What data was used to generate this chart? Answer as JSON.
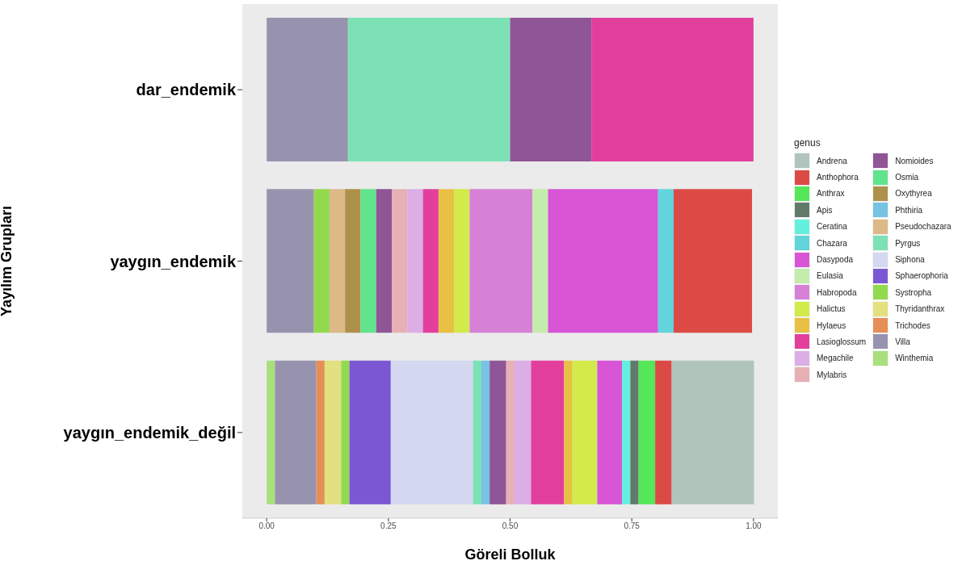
{
  "chart_data": {
    "type": "bar",
    "orientation": "horizontal",
    "stacked": true,
    "xlabel": "Göreli Bolluk",
    "ylabel": "Yayılım Grupları",
    "legend_title": "genus",
    "legend": "right",
    "categories": [
      "dar_endemik",
      "yaygın_endemik",
      "yaygın_endemik_değil"
    ],
    "xlim": [
      -0.05,
      1.05
    ],
    "xticks": [
      {
        "value": 0,
        "label": "0.00"
      },
      {
        "value": 0.25,
        "label": "0.25"
      },
      {
        "value": 0.5,
        "label": "0.50"
      },
      {
        "value": 0.75,
        "label": "0.75"
      },
      {
        "value": 1,
        "label": "1.00"
      }
    ],
    "series": [
      {
        "name": "Winthemia",
        "color": "#a9df7c",
        "values": [
          null,
          null,
          0.017
        ]
      },
      {
        "name": "Villa",
        "color": "#9793af",
        "values": [
          0.167,
          0.097,
          0.085
        ]
      },
      {
        "name": "Trichodes",
        "color": "#e58f57",
        "values": [
          null,
          null,
          0.017
        ]
      },
      {
        "name": "Thyridanthrax",
        "color": "#e3e07f",
        "values": [
          null,
          null,
          0.034
        ]
      },
      {
        "name": "Systropha",
        "color": "#91da4e",
        "values": [
          null,
          0.032,
          0.017
        ]
      },
      {
        "name": "Sphaerophoria",
        "color": "#7b57d4",
        "values": [
          null,
          null,
          0.085
        ]
      },
      {
        "name": "Siphona",
        "color": "#d4d8f0",
        "values": [
          null,
          null,
          0.169
        ]
      },
      {
        "name": "Pyrgus",
        "color": "#7ce2b5",
        "values": [
          0.333,
          null,
          0.017
        ]
      },
      {
        "name": "Pseudochazara",
        "color": "#dcb987",
        "values": [
          null,
          0.032,
          null
        ]
      },
      {
        "name": "Phthiria",
        "color": "#76c3e3",
        "values": [
          null,
          null,
          0.017
        ]
      },
      {
        "name": "Oxythyrea",
        "color": "#ad914b",
        "values": [
          null,
          0.032,
          null
        ]
      },
      {
        "name": "Osmia",
        "color": "#62e48c",
        "values": [
          null,
          0.032,
          null
        ]
      },
      {
        "name": "Nomioides",
        "color": "#8f5596",
        "values": [
          0.167,
          0.032,
          0.034
        ]
      },
      {
        "name": "Mylabris",
        "color": "#e6b0b4",
        "values": [
          null,
          0.032,
          0.017
        ]
      },
      {
        "name": "Megachile",
        "color": "#dbaee6",
        "values": [
          null,
          0.032,
          0.034
        ]
      },
      {
        "name": "Lasioglossum",
        "color": "#e23f9c",
        "values": [
          0.333,
          0.032,
          0.068
        ]
      },
      {
        "name": "Hylaeus",
        "color": "#e8c042",
        "values": [
          null,
          0.032,
          0.017
        ]
      },
      {
        "name": "Halictus",
        "color": "#d2ea4a",
        "values": [
          null,
          0.032,
          0.051
        ]
      },
      {
        "name": "Habropoda",
        "color": "#d680d6",
        "values": [
          null,
          0.129,
          null
        ]
      },
      {
        "name": "Eulasia",
        "color": "#c4ecac",
        "values": [
          null,
          0.032,
          null
        ]
      },
      {
        "name": "Dasypoda",
        "color": "#d855d6",
        "values": [
          null,
          0.226,
          0.051
        ]
      },
      {
        "name": "Chazara",
        "color": "#62d4dc",
        "values": [
          null,
          0.032,
          null
        ]
      },
      {
        "name": "Ceratina",
        "color": "#63f0dc",
        "values": [
          null,
          null,
          0.017
        ]
      },
      {
        "name": "Apis",
        "color": "#627a6a",
        "values": [
          null,
          null,
          0.017
        ]
      },
      {
        "name": "Anthrax",
        "color": "#55e65a",
        "values": [
          null,
          null,
          0.034
        ]
      },
      {
        "name": "Anthophora",
        "color": "#dc4a46",
        "values": [
          null,
          0.161,
          0.034
        ]
      },
      {
        "name": "Andrena",
        "color": "#b0c4bc",
        "values": [
          null,
          null,
          0.169
        ]
      }
    ]
  }
}
